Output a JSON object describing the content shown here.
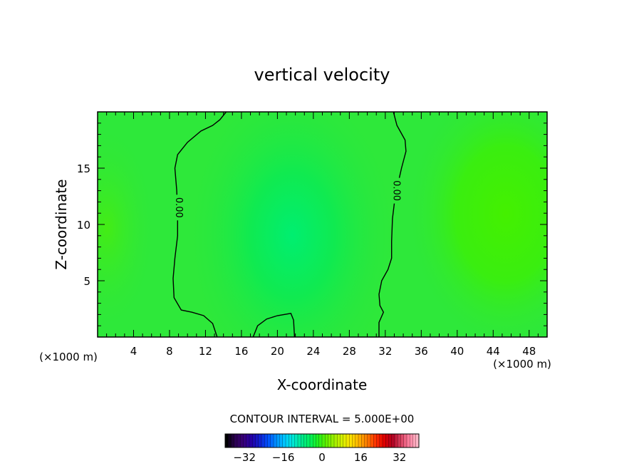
{
  "chart_data": {
    "type": "heatmap",
    "title": "vertical velocity",
    "xlabel": "X-coordinate",
    "ylabel": "Z-coordinate",
    "x_unit_label": "(×1000 m)",
    "z_unit_label": "(×1000 m)",
    "xlim": [
      0,
      50
    ],
    "ylim": [
      0,
      20
    ],
    "x_ticks": [
      4,
      8,
      12,
      16,
      20,
      24,
      28,
      32,
      36,
      40,
      44,
      48
    ],
    "y_ticks": [
      5,
      10,
      15
    ],
    "contour_interval_text": "CONTOUR INTERVAL = 5.000E+00",
    "contour_labels": [
      {
        "text": "0.00",
        "x": 9.0,
        "y": 11.5
      },
      {
        "text": "0.00",
        "x": 33.2,
        "y": 13.0
      }
    ],
    "zero_contours": [
      [
        [
          13.3,
          0.0
        ],
        [
          12.8,
          1.2
        ],
        [
          11.8,
          1.9
        ],
        [
          10.5,
          2.2
        ],
        [
          9.3,
          2.4
        ],
        [
          8.5,
          3.5
        ],
        [
          8.4,
          5.2
        ],
        [
          8.6,
          7.0
        ],
        [
          8.9,
          9.0
        ],
        [
          8.9,
          11.0
        ],
        [
          8.8,
          13.0
        ],
        [
          8.6,
          15.0
        ],
        [
          8.9,
          16.2
        ],
        [
          10.0,
          17.3
        ],
        [
          11.5,
          18.3
        ],
        [
          12.8,
          18.8
        ],
        [
          13.6,
          19.3
        ],
        [
          14.3,
          20.0
        ]
      ],
      [
        [
          17.3,
          0.0
        ],
        [
          17.8,
          1.0
        ],
        [
          18.8,
          1.6
        ],
        [
          20.0,
          1.9
        ],
        [
          21.5,
          2.1
        ],
        [
          21.8,
          1.5
        ],
        [
          21.9,
          0.0
        ]
      ],
      [
        [
          31.3,
          0.0
        ],
        [
          31.3,
          1.3
        ],
        [
          31.8,
          2.2
        ],
        [
          31.4,
          2.8
        ],
        [
          31.3,
          3.8
        ],
        [
          31.6,
          5.0
        ],
        [
          32.3,
          6.0
        ],
        [
          32.7,
          7.0
        ],
        [
          32.7,
          8.5
        ],
        [
          32.8,
          10.5
        ],
        [
          33.1,
          12.5
        ],
        [
          33.8,
          15.0
        ],
        [
          34.3,
          16.5
        ],
        [
          34.2,
          17.5
        ],
        [
          33.3,
          18.8
        ],
        [
          32.9,
          20.0
        ]
      ]
    ],
    "colorbar": {
      "ticks": [
        -32,
        -16,
        0,
        16,
        32
      ],
      "range": [
        -40,
        40
      ],
      "colors": [
        "#000000",
        "#2a0050",
        "#3a0078",
        "#2400a8",
        "#1020d0",
        "#0050ff",
        "#0090ff",
        "#00c8ff",
        "#00e8d8",
        "#00e890",
        "#00f060",
        "#20f020",
        "#60f000",
        "#a0f000",
        "#d8f000",
        "#ffe000",
        "#ffb000",
        "#ff7800",
        "#ff3000",
        "#e00000",
        "#b00020",
        "#d84060",
        "#ff80a0",
        "#ffb8c8"
      ]
    }
  }
}
